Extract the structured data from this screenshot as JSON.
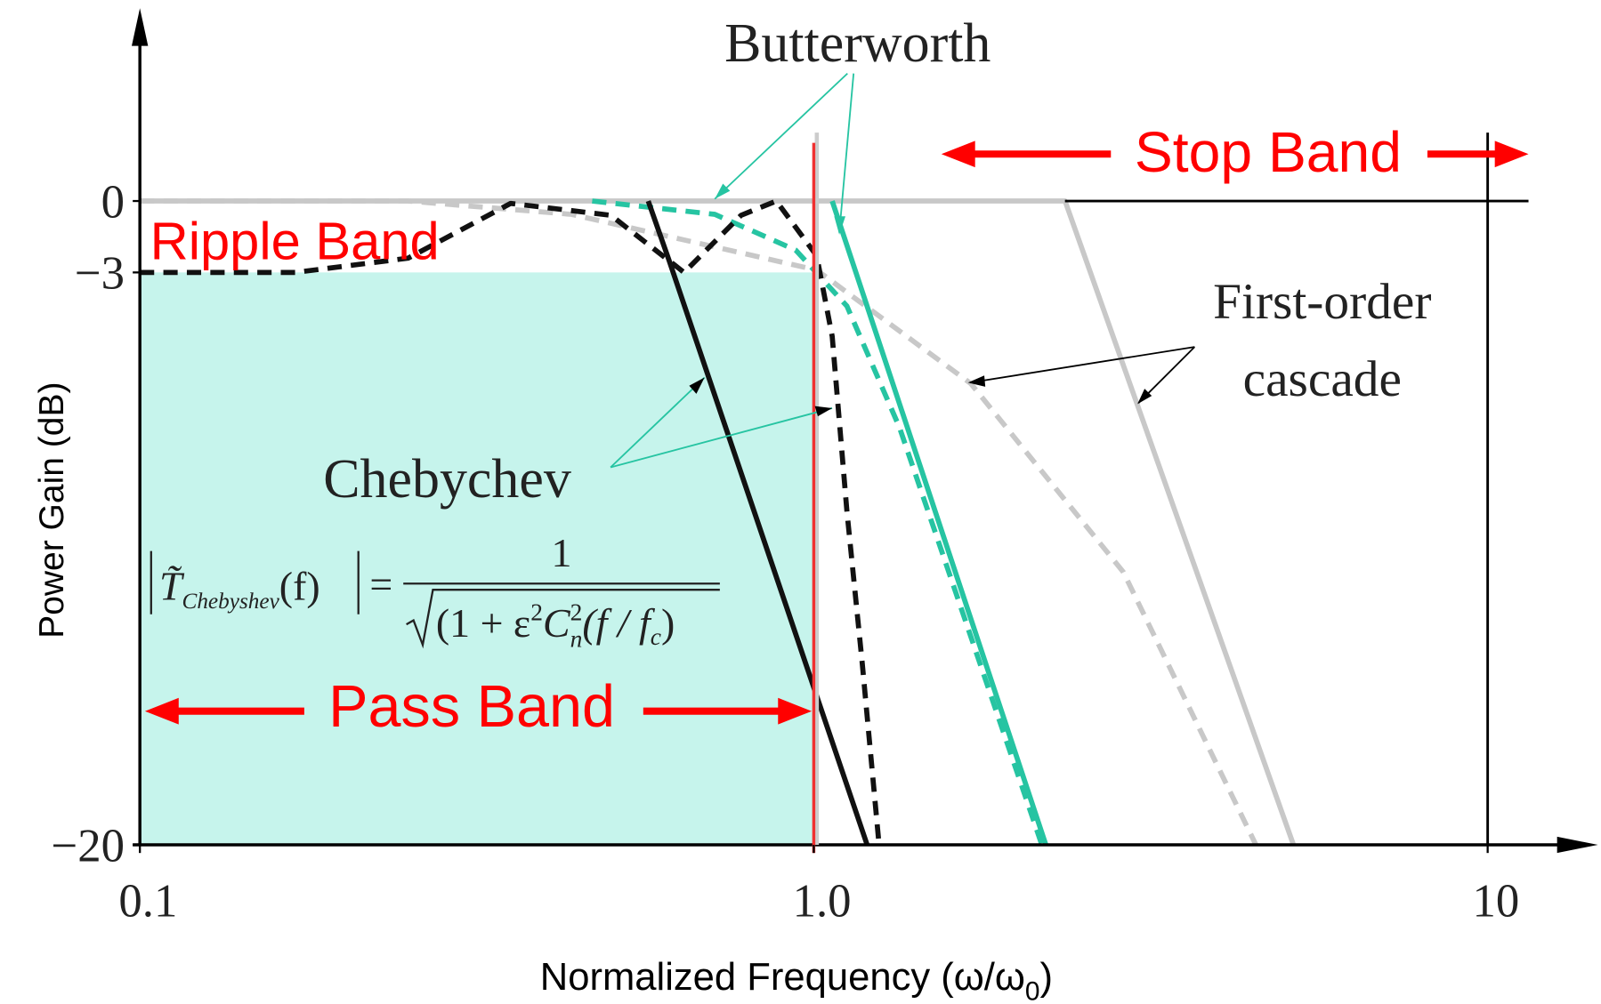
{
  "chart_data": {
    "type": "line",
    "x_label": {
      "text": "Normalized Frequency (ω/ω",
      "subscript": "0",
      "suffix": ")"
    },
    "y_label": "Power Gain (dB)",
    "xlim": [
      0.1,
      10
    ],
    "xticks": [
      0.1,
      {
        "value": 1,
        "label": "1.0"
      },
      10
    ],
    "ylim": [
      -20,
      0
    ],
    "yticks": [
      {
        "value": -20,
        "label": "−20"
      },
      {
        "value": -3,
        "label": "−3"
      },
      0
    ],
    "log_x": true,
    "series": [
      {
        "color": "#c8c8c8",
        "style": "solid",
        "x": [
          0.1,
          2.36,
          5.15
        ],
        "values": [
          0,
          0,
          -20
        ]
      },
      {
        "color": "#c8c8c8",
        "style": "dashed",
        "x": [
          0.1,
          0.25,
          0.437,
          1.01,
          1.71,
          2.88,
          4.53
        ],
        "values": [
          0,
          0,
          -0.56,
          -2.9,
          -6.3,
          -11.9,
          -20
        ]
      },
      {
        "color": "#26c4a2",
        "style": "dashed",
        "x": [
          0.469,
          0.713,
          0.94,
          1.12,
          1.34,
          2.18
        ],
        "values": [
          0,
          -0.56,
          -2.06,
          -4.0,
          -7.6,
          -20
        ]
      },
      {
        "color": "#26c4a2",
        "style": "solid",
        "x": [
          1.065,
          2.21
        ],
        "values": [
          0,
          -20
        ]
      },
      {
        "color": "#111111",
        "style": "dashed",
        "x": [
          0.1,
          0.17,
          0.25,
          0.355,
          0.5,
          0.642,
          0.78,
          0.88,
          1.01,
          1.065,
          1.12,
          1.18,
          1.25
        ],
        "values": [
          -3,
          -3,
          -2.4,
          -0.1,
          -0.6,
          -3.0,
          -0.6,
          0,
          -2.3,
          -4.9,
          -10.1,
          -14.6,
          -20
        ]
      },
      {
        "color": "#111111",
        "style": "solid",
        "x": [
          0.568,
          0.61,
          1.2
        ],
        "values": [
          0,
          -2.5,
          -20
        ]
      }
    ],
    "annotations": {
      "butterworth": "Butterworth",
      "stop_band": "Stop Band",
      "ripple_band": "Ripple Band",
      "first_order": [
        "First-order",
        "cascade"
      ],
      "chebychev": "Chebychev",
      "pass_band": "Pass Band",
      "formula": {
        "lhs": "T̃",
        "lhs_sub": "Chebyshev",
        "lhs_arg": "(f)",
        "equals": "=",
        "numerator": "1",
        "den_a": "(1 + ε",
        "den_sup": "2",
        "den_c": "C",
        "den_c_sup": "2",
        "den_c_sub": "n",
        "den_b": "(f / f",
        "den_fc_sub": "c",
        "den_end": ")"
      }
    }
  }
}
